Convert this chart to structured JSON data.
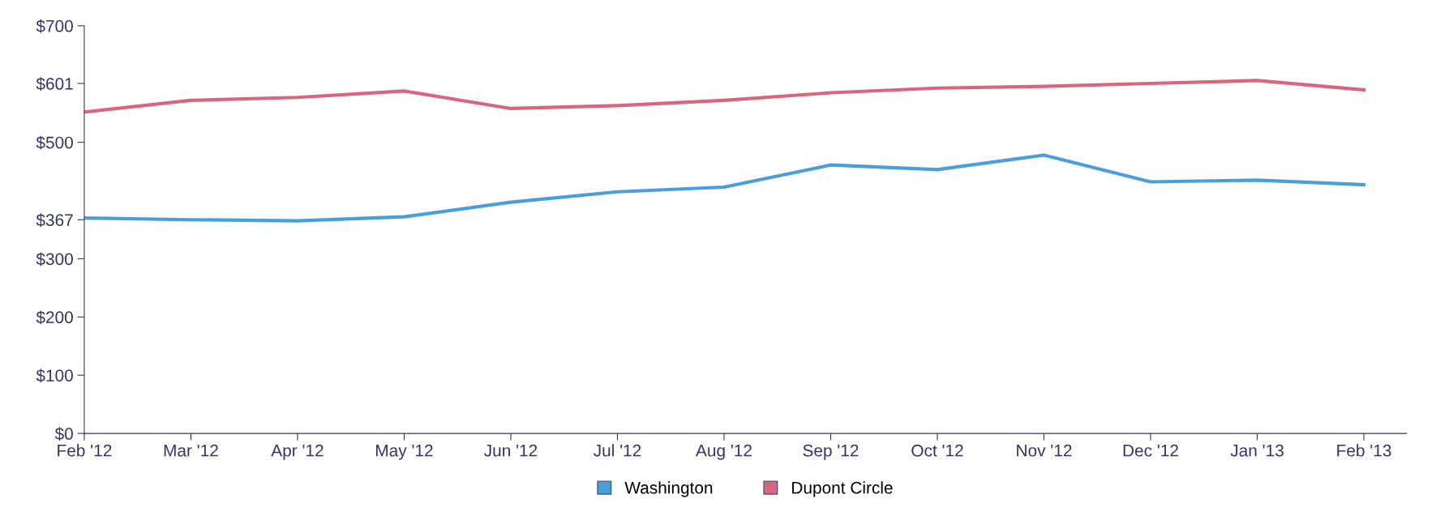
{
  "chart_data": {
    "type": "line",
    "categories": [
      "Feb '12",
      "Mar '12",
      "Apr '12",
      "May '12",
      "Jun '12",
      "Jul '12",
      "Aug '12",
      "Sep '12",
      "Oct '12",
      "Nov '12",
      "Dec '12",
      "Jan '13",
      "Feb '13"
    ],
    "series": [
      {
        "name": "Washington",
        "color": "#4a9fd8",
        "values": [
          370,
          367,
          365,
          372,
          397,
          415,
          423,
          461,
          453,
          478,
          432,
          435,
          427
        ]
      },
      {
        "name": "Dupont Circle",
        "color": "#d9667f",
        "values": [
          552,
          572,
          577,
          588,
          558,
          563,
          572,
          585,
          593,
          596,
          601,
          606,
          590
        ]
      }
    ],
    "ylim": [
      0,
      700
    ],
    "yticks": [
      {
        "value": 0,
        "label": "$0"
      },
      {
        "value": 100,
        "label": "$100"
      },
      {
        "value": 200,
        "label": "$200"
      },
      {
        "value": 300,
        "label": "$300"
      },
      {
        "value": 367,
        "label": "$367"
      },
      {
        "value": 500,
        "label": "$500"
      },
      {
        "value": 601,
        "label": "$601"
      },
      {
        "value": 700,
        "label": "$700"
      }
    ],
    "grid": false,
    "legend": "bottom",
    "marker": "none",
    "line_style": "solid"
  }
}
